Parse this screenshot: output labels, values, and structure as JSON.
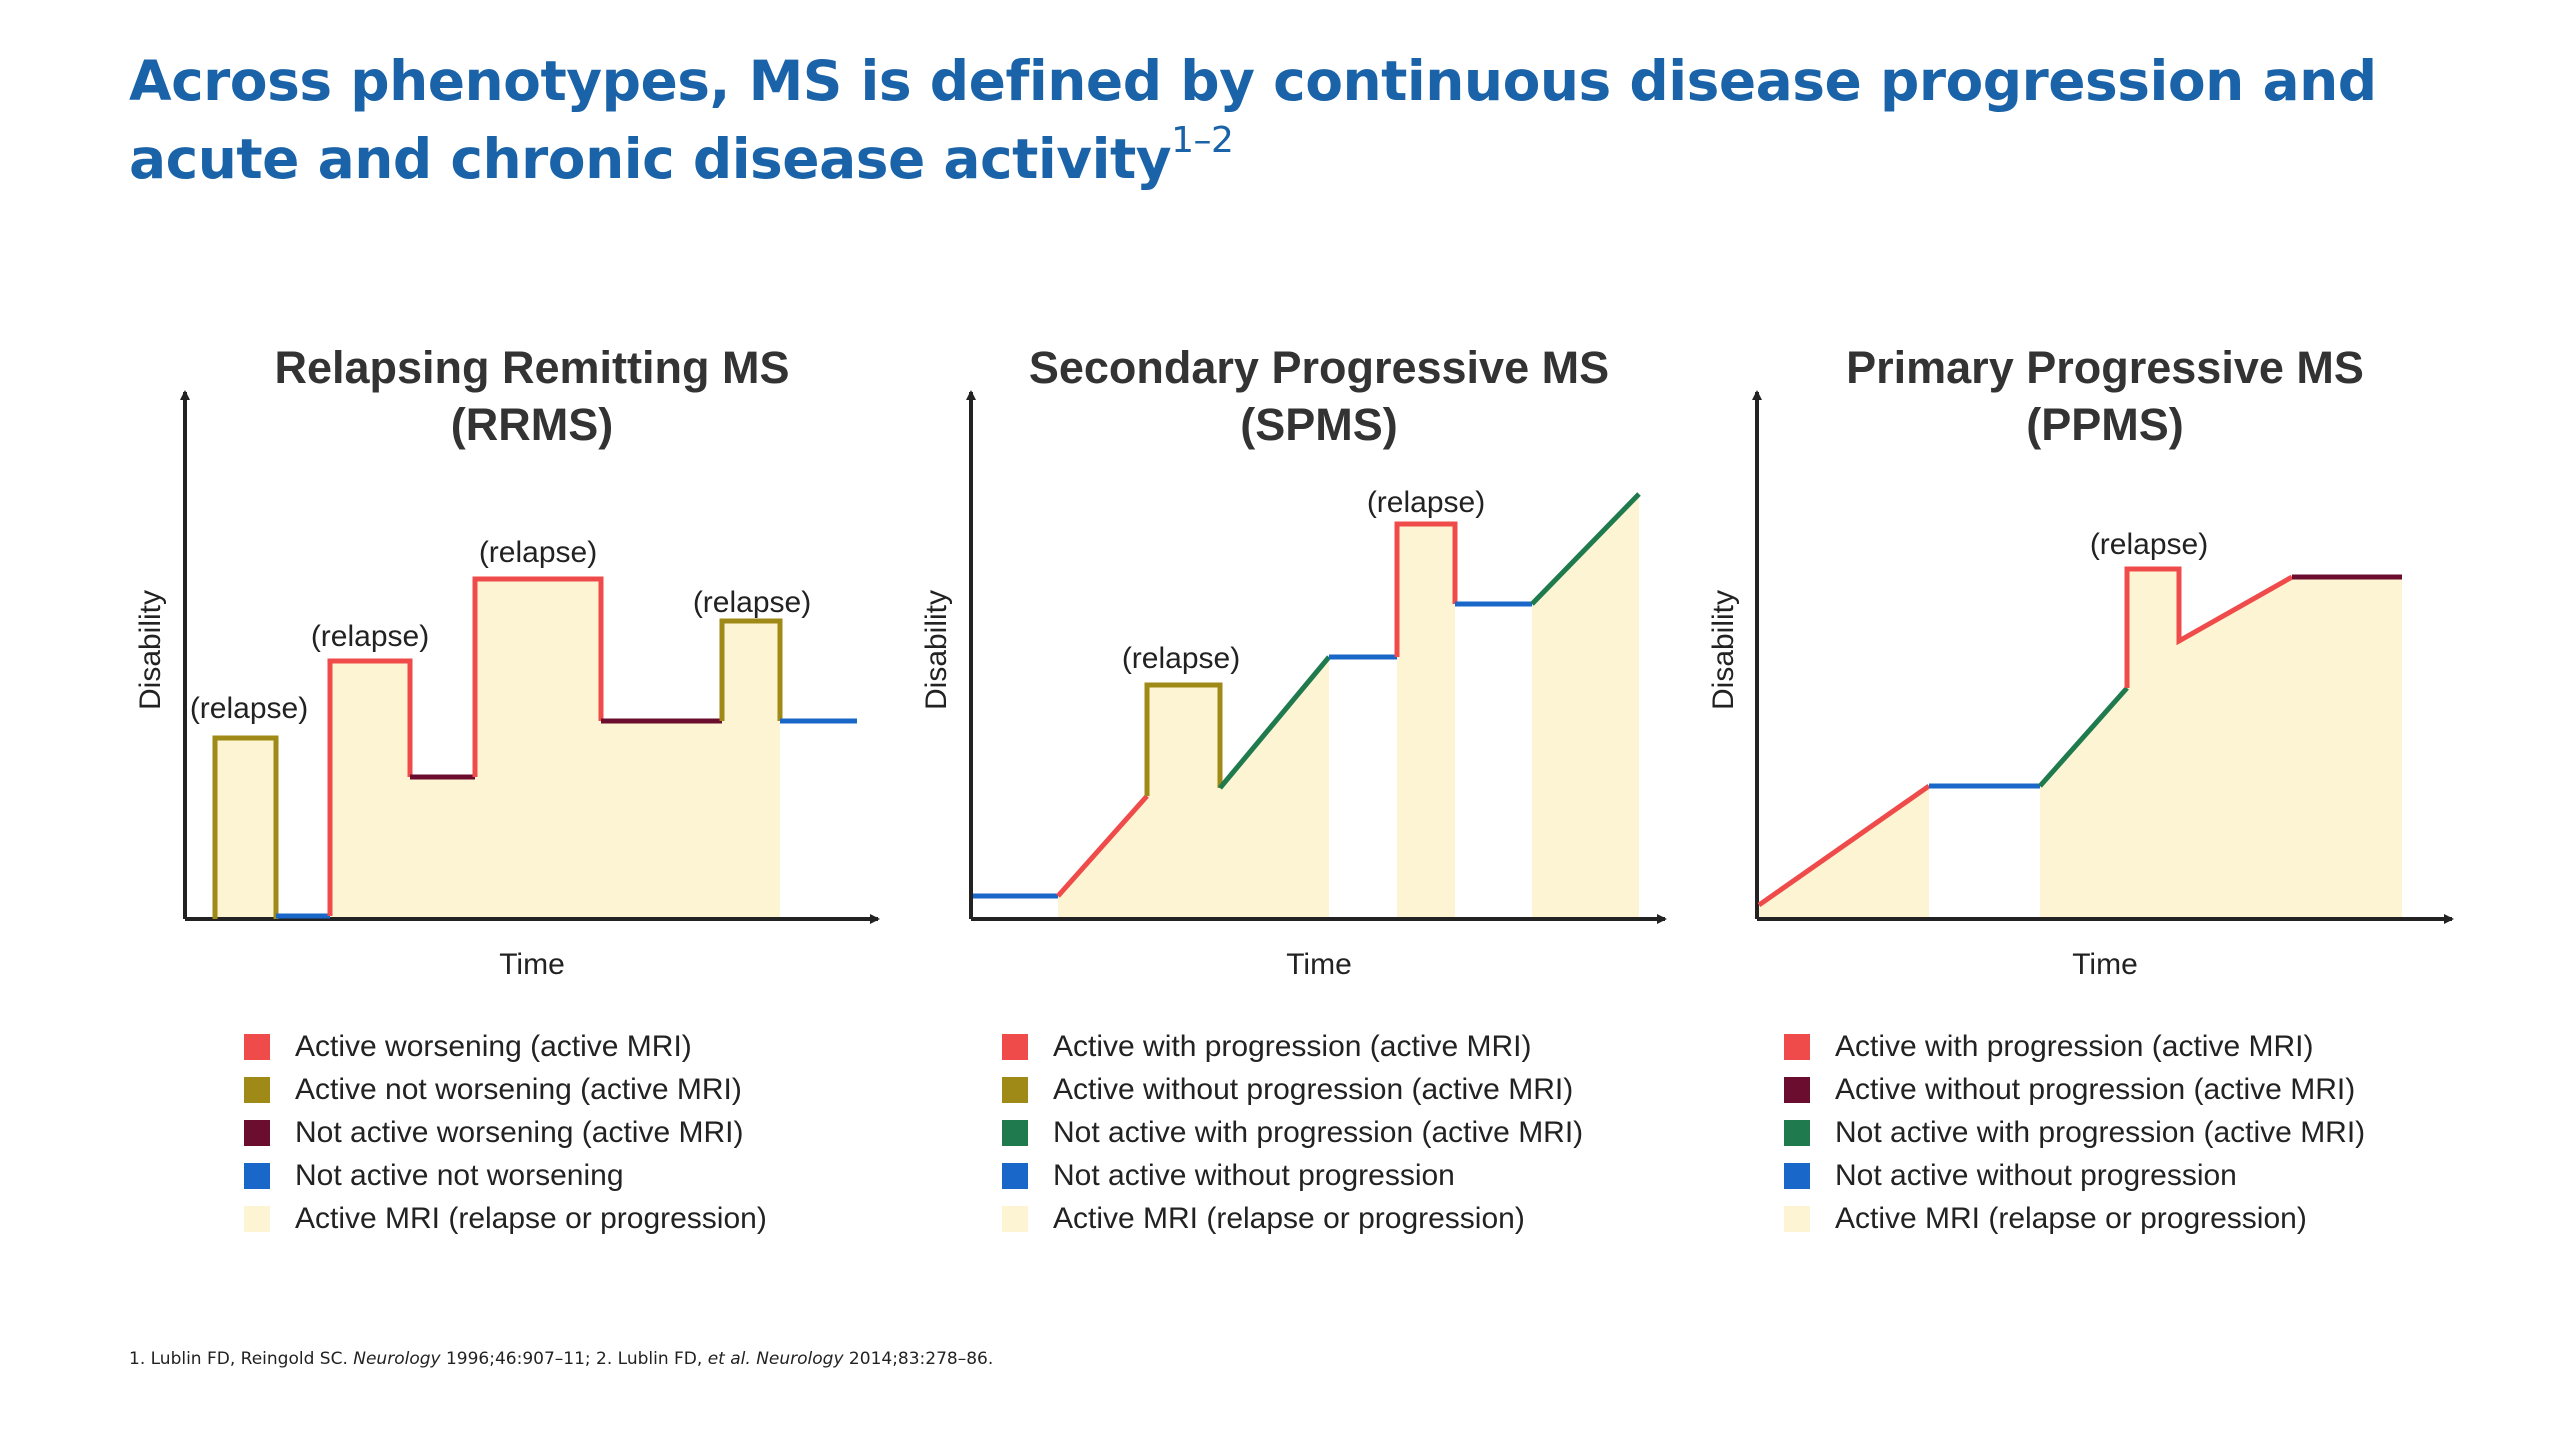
{
  "title": {
    "text": "Across phenotypes, MS is defined by continuous disease progression and acute and chronic disease activity",
    "superscript": "1–2"
  },
  "colors": {
    "active_worsening": "#ef4b4b",
    "active_not_worsening": "#a08a17",
    "not_active_worsening": "#6b0d2e",
    "not_active_progression": "#1f7a4d",
    "not_active_not_worsening": "#1967c9",
    "active_mri": "#fcf4d2",
    "title": "#1b63a8"
  },
  "panels": [
    {
      "title_line1": "Relapsing Remitting MS",
      "title_line2": "(RRMS)",
      "xlabel": "Time",
      "ylabel": "Disability",
      "annotations": [
        "(relapse)",
        "(relapse)",
        "(relapse)",
        "(relapse)"
      ],
      "legend": [
        {
          "color": "#ef4b4b",
          "label": "Active worsening (active MRI)"
        },
        {
          "color": "#a08a17",
          "label": "Active not worsening (active MRI)"
        },
        {
          "color": "#6b0d2e",
          "label": "Not active worsening (active MRI)"
        },
        {
          "color": "#1967c9",
          "label": "Not active not worsening"
        },
        {
          "color": "#fcf4d2",
          "label": "Active MRI (relapse or progression)"
        }
      ]
    },
    {
      "title_line1": "Secondary Progressive MS",
      "title_line2": "(SPMS)",
      "xlabel": "Time",
      "ylabel": "Disability",
      "annotations": [
        "(relapse)",
        "(relapse)"
      ],
      "legend": [
        {
          "color": "#ef4b4b",
          "label": "Active with progression (active MRI)"
        },
        {
          "color": "#a08a17",
          "label": "Active without progression (active MRI)"
        },
        {
          "color": "#1f7a4d",
          "label": "Not active with progression (active MRI)"
        },
        {
          "color": "#1967c9",
          "label": "Not active without progression"
        },
        {
          "color": "#fcf4d2",
          "label": "Active MRI (relapse or progression)"
        }
      ]
    },
    {
      "title_line1": "Primary Progressive MS",
      "title_line2": "(PPMS)",
      "xlabel": "Time",
      "ylabel": "Disability",
      "annotations": [
        "(relapse)"
      ],
      "legend": [
        {
          "color": "#ef4b4b",
          "label": "Active with progression (active MRI)"
        },
        {
          "color": "#6b0d2e",
          "label": "Active without progression (active MRI)"
        },
        {
          "color": "#1f7a4d",
          "label": "Not active with progression (active MRI)"
        },
        {
          "color": "#1967c9",
          "label": "Not active without progression"
        },
        {
          "color": "#fcf4d2",
          "label": "Active MRI (relapse or progression)"
        }
      ]
    }
  ],
  "footnote": {
    "p1": "1. Lublin FD, Reingold SC. ",
    "j1": "Neurology",
    "p2": " 1996;46:907–11; 2. Lublin FD, ",
    "etal": "et al.",
    "p3": " ",
    "j2": "Neurology",
    "p4": " 2014;83:278–86."
  }
}
